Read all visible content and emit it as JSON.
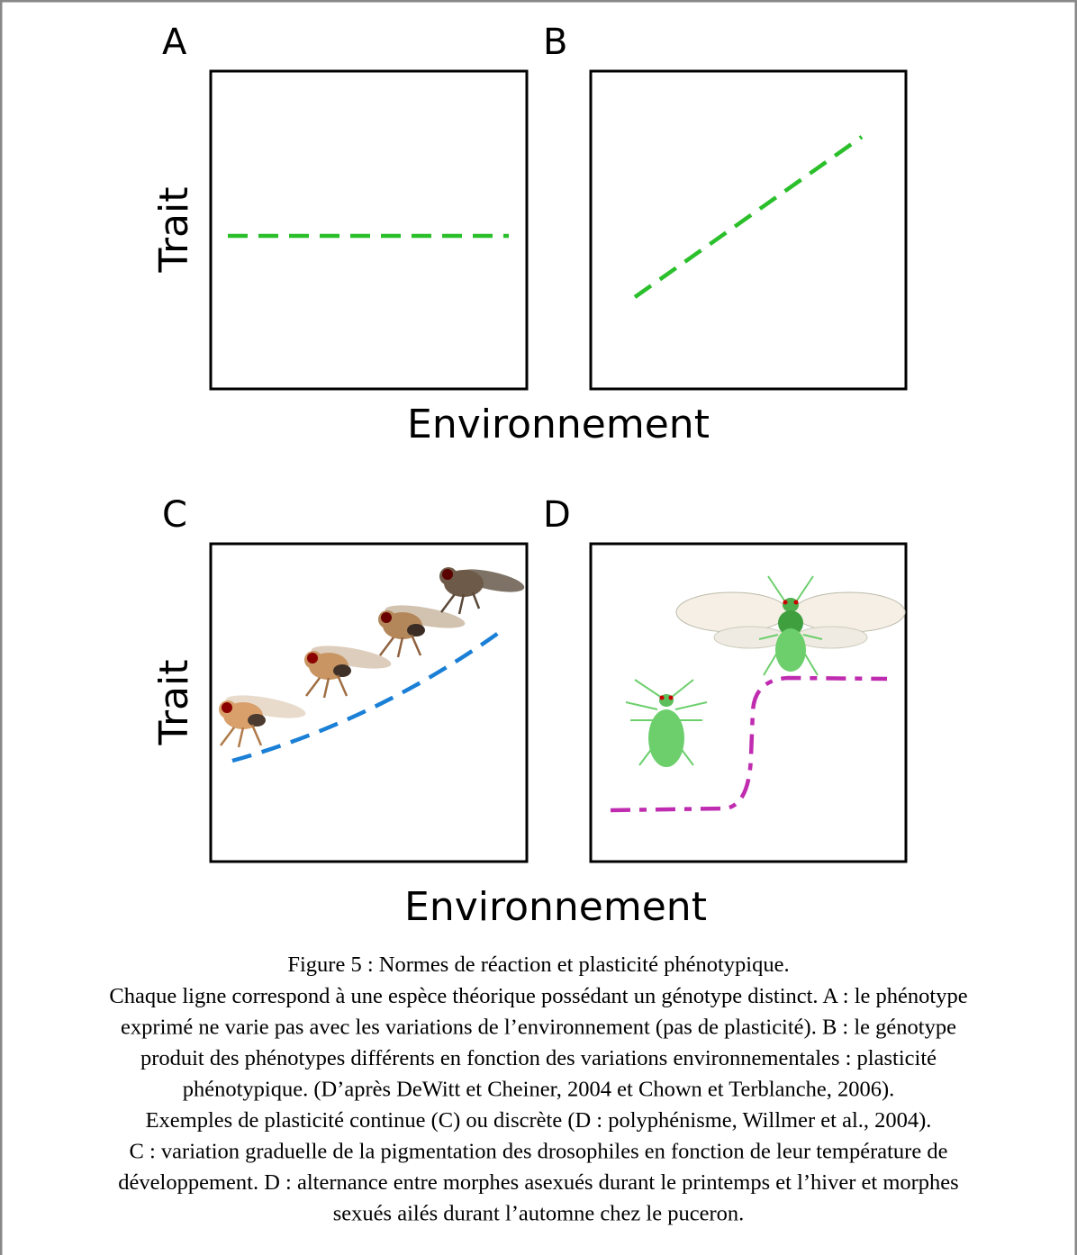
{
  "figure": {
    "panels": [
      {
        "label": "A"
      },
      {
        "label": "B"
      },
      {
        "label": "C"
      },
      {
        "label": "D"
      }
    ],
    "rows": [
      {
        "y_label": "Trait",
        "x_label": "Environnement"
      },
      {
        "y_label": "Trait",
        "x_label": "Environnement"
      }
    ]
  },
  "caption": {
    "title": "Figure 5 : Normes de réaction et plasticité phénotypique.",
    "lines": [
      "Chaque ligne correspond à une espèce théorique possédant un génotype distinct. A : le phénotype",
      "exprimé ne varie pas avec les variations de l’environnement (pas de plasticité). B : le génotype",
      "produit des phénotypes différents en fonction des variations environnementales : plasticité",
      "phénotypique. (D’après DeWitt et Cheiner, 2004 et Chown et Terblanche, 2006).",
      "Exemples de plasticité continue (C) ou discrète (D : polyphénisme, Willmer et al., 2004).",
      "C : variation graduelle de la pigmentation des drosophiles en fonction de leur température de",
      "développement. D : alternance entre morphes asexués durant le printemps et l’hiver et morphes",
      "sexués ailés durant l’automne chez le puceron."
    ]
  }
}
